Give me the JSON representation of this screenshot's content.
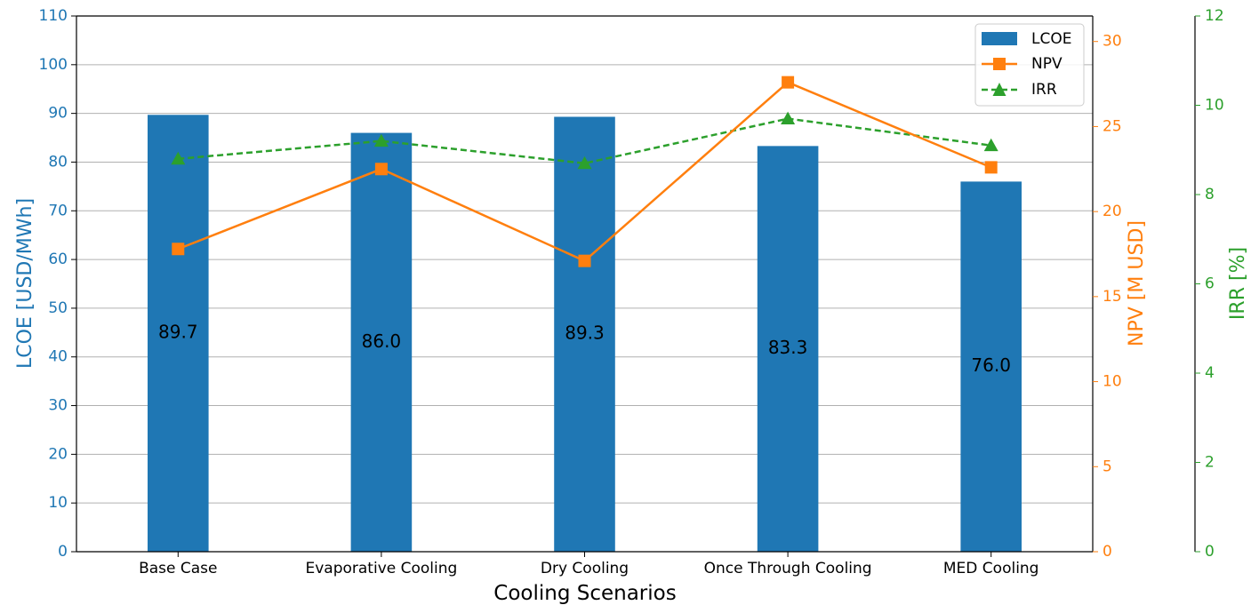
{
  "chart_data": {
    "type": "bar",
    "categories": [
      "Base Case",
      "Evaporative Cooling",
      "Dry Cooling",
      "Once Through Cooling",
      "MED Cooling"
    ],
    "xlabel": "Cooling Scenarios",
    "series": [
      {
        "name": "LCOE",
        "type": "bar",
        "axis": "left",
        "color": "#1f77b4",
        "values": [
          89.7,
          86.0,
          89.3,
          83.3,
          76.0
        ],
        "value_labels": [
          "89.7",
          "86.0",
          "89.3",
          "83.3",
          "76.0"
        ]
      },
      {
        "name": "NPV",
        "type": "line",
        "axis": "right",
        "color": "#ff7f0e",
        "marker": "square",
        "line_style": "solid",
        "values": [
          17.8,
          22.5,
          17.1,
          27.6,
          22.6
        ]
      },
      {
        "name": "IRR",
        "type": "line",
        "axis": "far-right",
        "color": "#2ca02c",
        "marker": "triangle",
        "line_style": "dashed",
        "values": [
          8.8,
          9.2,
          8.7,
          9.7,
          9.1
        ]
      }
    ],
    "axes": {
      "left": {
        "label": "LCOE [USD/MWh]",
        "color": "#1f77b4",
        "ylim": [
          0,
          110
        ],
        "ticks": [
          0,
          10,
          20,
          30,
          40,
          50,
          60,
          70,
          80,
          90,
          100,
          110
        ]
      },
      "right": {
        "label": "NPV [M USD]",
        "color": "#ff7f0e",
        "ylim": [
          0,
          31.5
        ],
        "ticks": [
          0,
          5,
          10,
          15,
          20,
          25,
          30
        ]
      },
      "far_right": {
        "label": "IRR [%]",
        "color": "#2ca02c",
        "ylim": [
          0,
          12
        ],
        "ticks": [
          0,
          2,
          4,
          6,
          8,
          10,
          12
        ]
      }
    },
    "grid": "horizontal",
    "legend": {
      "position": "top-right",
      "entries": [
        "LCOE",
        "NPV",
        "IRR"
      ]
    }
  }
}
